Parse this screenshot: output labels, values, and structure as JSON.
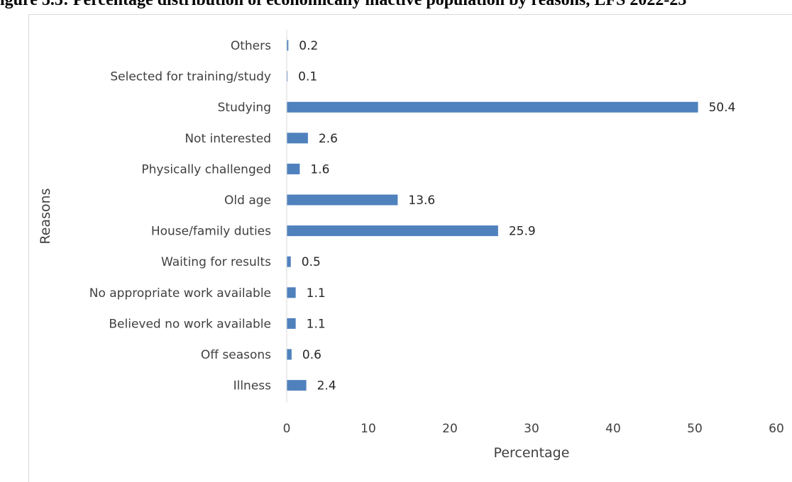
{
  "figure_title": "igure 5.5: Percentage distribution of economically inactive population by reasons, LFS 2022-23",
  "chart_data": {
    "type": "bar",
    "orientation": "horizontal",
    "title": "",
    "xlabel": "Percentage",
    "ylabel": "Reasons",
    "xlim": [
      0,
      60
    ],
    "xticks": [
      0,
      10,
      20,
      30,
      40,
      50,
      60
    ],
    "grid": false,
    "bar_color": "#4f81bd",
    "categories": [
      "Others",
      "Selected for training/study",
      "Studying",
      "Not interested",
      "Physically challenged",
      "Old age",
      "House/family duties",
      "Waiting for results",
      "No appropriate work available",
      "Believed no work available",
      "Off seasons",
      "Illness"
    ],
    "values": [
      0.2,
      0.1,
      50.4,
      2.6,
      1.6,
      13.6,
      25.9,
      0.5,
      1.1,
      1.1,
      0.6,
      2.4
    ],
    "value_labels": [
      "0.2",
      "0.1",
      "50.4",
      "2.6",
      "1.6",
      "13.6",
      "25.9",
      "0.5",
      "1.1",
      "1.1",
      "0.6",
      "2.4"
    ]
  }
}
